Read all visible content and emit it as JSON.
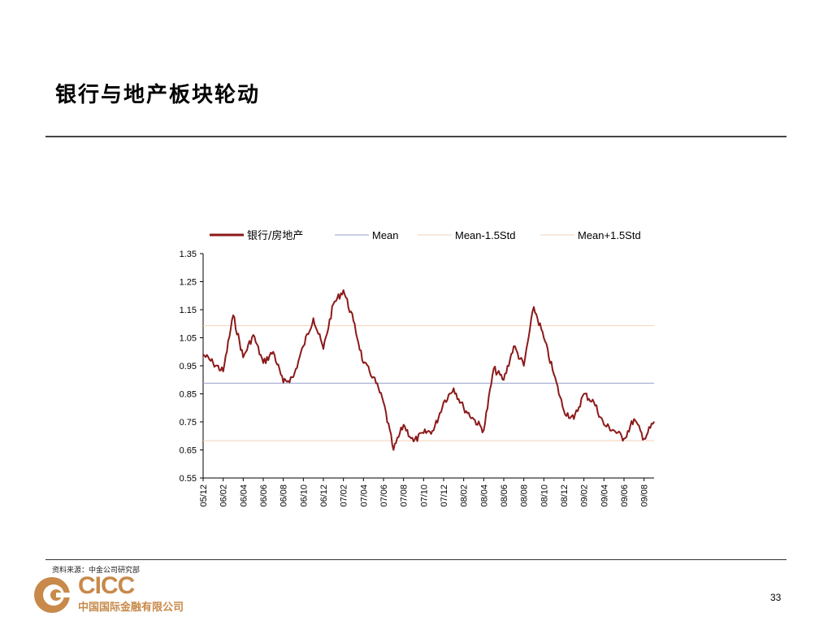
{
  "page": {
    "title": "银行与地产板块轮动",
    "source": "资料来源：中金公司研究部",
    "page_number": "33"
  },
  "logo": {
    "wordmark": "CICC",
    "subtitle": "中国国际金融有限公司",
    "color": "#c8894a"
  },
  "chart_data": {
    "type": "line",
    "title": "",
    "xlabel": "",
    "ylabel": "",
    "ylim": [
      0.55,
      1.35
    ],
    "yticks": [
      "1.35",
      "1.25",
      "1.15",
      "1.05",
      "0.95",
      "0.85",
      "0.75",
      "0.65",
      "0.55"
    ],
    "ytick_values": [
      1.35,
      1.25,
      1.15,
      1.05,
      0.95,
      0.85,
      0.75,
      0.65,
      0.55
    ],
    "xticks": [
      "05/12",
      "06/02",
      "06/04",
      "06/06",
      "06/08",
      "06/10",
      "06/12",
      "07/02",
      "07/04",
      "07/06",
      "07/08",
      "07/10",
      "07/12",
      "08/02",
      "08/04",
      "08/06",
      "08/08",
      "08/10",
      "08/12",
      "09/02",
      "09/04",
      "09/06",
      "09/08"
    ],
    "legend_position": "top",
    "grid": false,
    "series": [
      {
        "name": "银行/房地产",
        "color": "#8b1a1a",
        "x": [
          "05/12",
          "06/01",
          "06/02",
          "06/03",
          "06/04",
          "06/05",
          "06/06",
          "06/07",
          "06/08",
          "06/09",
          "06/10",
          "06/11",
          "06/12",
          "07/01",
          "07/02",
          "07/03",
          "07/04",
          "07/05",
          "07/06",
          "07/07",
          "07/08",
          "07/09",
          "07/10",
          "07/11",
          "07/12",
          "08/01",
          "08/02",
          "08/03",
          "08/04",
          "08/05",
          "08/06",
          "08/07",
          "08/08",
          "08/09",
          "08/10",
          "08/11",
          "08/12",
          "09/01",
          "09/02",
          "09/03",
          "09/04",
          "09/05",
          "09/06",
          "09/07",
          "09/08",
          "09/09"
        ],
        "values": [
          0.99,
          0.96,
          0.93,
          1.13,
          0.98,
          1.06,
          0.96,
          1.0,
          0.89,
          0.91,
          1.02,
          1.12,
          1.01,
          1.17,
          1.22,
          1.11,
          0.96,
          0.91,
          0.82,
          0.65,
          0.74,
          0.68,
          0.71,
          0.72,
          0.82,
          0.87,
          0.8,
          0.76,
          0.72,
          0.94,
          0.9,
          1.02,
          0.95,
          1.16,
          1.05,
          0.92,
          0.79,
          0.76,
          0.85,
          0.82,
          0.74,
          0.72,
          0.69,
          0.76,
          0.69,
          0.75
        ]
      },
      {
        "name": "Mean",
        "color": "#9aa0cc",
        "value": 0.888
      },
      {
        "name": "Mean-1.5Std",
        "color": "#f2d2b8",
        "value": 0.683
      },
      {
        "name": "Mean+1.5Std",
        "color": "#f2d2b8",
        "value": 1.093
      }
    ]
  }
}
